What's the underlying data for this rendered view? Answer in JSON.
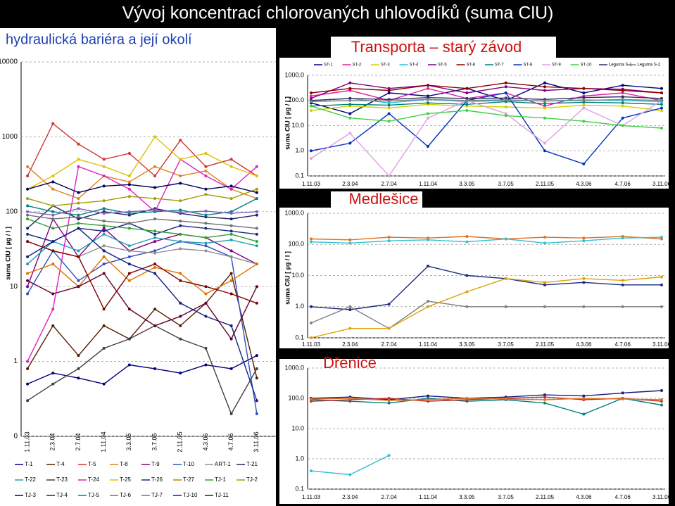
{
  "slide": {
    "title": "Vývoj koncentrací chlorovaných uhlovodíků (suma ClU)",
    "subtitle": "hydraulická bariéra a její okolí"
  },
  "chart_data": [
    {
      "type": "line",
      "log_scale": true,
      "grid": true,
      "y_label": "suma ClU [ µg / l ]",
      "categories": [
        "1.11.03",
        "2.3.04",
        "2.7.04",
        "1.11.04",
        "3.3.05",
        "3.7.05",
        "2.11.05",
        "4.3.06",
        "4.7.06",
        "3.11.06"
      ],
      "ylim": [
        0.1,
        10000
      ],
      "yticks": [
        10000,
        1000,
        100,
        10,
        1,
        {
          "value": 0.1,
          "label": "0"
        }
      ],
      "series": [
        {
          "name": "T-1",
          "color": "#000080",
          "values": [
            0.5,
            0.7,
            0.6,
            0.5,
            0.9,
            0.8,
            0.7,
            0.9,
            0.8,
            1.2
          ]
        },
        {
          "name": "T-4",
          "color": "#5a1a00",
          "values": [
            0.8,
            3,
            1.2,
            3,
            2,
            5,
            3,
            6,
            15,
            0.6
          ]
        },
        {
          "name": "T-5",
          "color": "#cc3333",
          "values": [
            300,
            1500,
            800,
            500,
            600,
            300,
            900,
            400,
            500,
            300
          ]
        },
        {
          "name": "T-8",
          "color": "#e08020",
          "values": [
            400,
            200,
            150,
            300,
            250,
            400,
            300,
            350,
            200,
            150
          ]
        },
        {
          "name": "T-9",
          "color": "#800080",
          "values": [
            10,
            80,
            25,
            60,
            30,
            40,
            50,
            45,
            30,
            20
          ]
        },
        {
          "name": "T-10",
          "color": "#3050c0",
          "values": [
            8,
            30,
            12,
            20,
            25,
            30,
            40,
            35,
            25,
            0.2
          ]
        },
        {
          "name": "ART-1",
          "color": "#909090",
          "values": [
            40,
            30,
            25,
            35,
            30,
            28,
            32,
            30,
            25,
            20
          ]
        },
        {
          "name": "T-21",
          "color": "#202060",
          "values": [
            60,
            120,
            80,
            100,
            90,
            110,
            95,
            85,
            80,
            90
          ]
        },
        {
          "name": "T-22",
          "color": "#20a0b0",
          "values": [
            20,
            40,
            30,
            50,
            35,
            45,
            40,
            38,
            42,
            35
          ]
        },
        {
          "name": "T-23",
          "color": "#404040",
          "values": [
            0.3,
            0.5,
            0.8,
            1.5,
            2,
            3,
            2,
            1.5,
            0.2,
            0.8
          ]
        },
        {
          "name": "T-24",
          "color": "#e020c0",
          "values": [
            1,
            5,
            400,
            300,
            200,
            100,
            500,
            300,
            200,
            400
          ]
        },
        {
          "name": "T-25",
          "color": "#e0c000",
          "values": [
            200,
            300,
            500,
            400,
            300,
            1000,
            500,
            600,
            400,
            300
          ]
        },
        {
          "name": "T-26",
          "color": "#1a2a80",
          "values": [
            50,
            40,
            60,
            55,
            70,
            50,
            65,
            60,
            55,
            50
          ]
        },
        {
          "name": "T-27",
          "color": "#e07000",
          "values": [
            15,
            20,
            10,
            25,
            12,
            18,
            15,
            8,
            12,
            20
          ]
        },
        {
          "name": "TJ-1",
          "color": "#30a030",
          "values": [
            80,
            60,
            70,
            65,
            60,
            55,
            50,
            45,
            50,
            40
          ]
        },
        {
          "name": "TJ-2",
          "color": "#a0a000",
          "values": [
            150,
            120,
            130,
            140,
            160,
            150,
            140,
            170,
            150,
            200
          ]
        },
        {
          "name": "TJ-3",
          "color": "#000060",
          "values": [
            200,
            250,
            180,
            220,
            230,
            210,
            240,
            200,
            220,
            180
          ]
        },
        {
          "name": "TJ-4",
          "color": "#800000",
          "values": [
            40,
            30,
            25,
            5,
            15,
            20,
            12,
            10,
            8,
            6
          ]
        },
        {
          "name": "TJ-5",
          "color": "#008080",
          "values": [
            120,
            100,
            90,
            110,
            95,
            100,
            105,
            90,
            100,
            150
          ]
        },
        {
          "name": "TJ-6",
          "color": "#707070",
          "values": [
            90,
            80,
            85,
            75,
            70,
            80,
            75,
            70,
            65,
            60
          ]
        },
        {
          "name": "TJ-7",
          "color": "#8060c0",
          "values": [
            100,
            90,
            110,
            95,
            100,
            105,
            98,
            102,
            95,
            100
          ]
        },
        {
          "name": "TJ-10",
          "color": "#102080",
          "values": [
            25,
            40,
            60,
            30,
            20,
            15,
            6,
            4,
            3,
            0.3
          ]
        },
        {
          "name": "TJ-11",
          "color": "#600030",
          "values": [
            12,
            8,
            10,
            15,
            5,
            3,
            4,
            6,
            2,
            10
          ]
        }
      ]
    },
    {
      "type": "line",
      "log_scale": true,
      "grid": true,
      "title": "Transporta – starý závod",
      "y_label": "suma ClU [ µg / l ]",
      "categories": [
        "1.11.03",
        "2.3.04",
        "2.7.04",
        "1.11.04",
        "3.3.05",
        "3.7.05",
        "2.11.05",
        "4.3.06",
        "4.7.06",
        "3.11.06"
      ],
      "ylim": [
        0.1,
        1000
      ],
      "yticks": [
        {
          "value": 1000,
          "label": "1000.0"
        },
        {
          "value": 100,
          "label": "100.0"
        },
        {
          "value": 10,
          "label": "10.0"
        },
        {
          "value": 1,
          "label": "1.0"
        },
        0.1
      ],
      "series": [
        {
          "name": "ST-1",
          "color": "#000080",
          "values": [
            80,
            30,
            200,
            150,
            300,
            100,
            500,
            200,
            400,
            300
          ]
        },
        {
          "name": "ST-2",
          "color": "#e020a0",
          "values": [
            150,
            250,
            100,
            300,
            120,
            200,
            60,
            150,
            200,
            100
          ]
        },
        {
          "name": "ST-3",
          "color": "#d0d000",
          "values": [
            40,
            60,
            50,
            70,
            60,
            55,
            50,
            65,
            60,
            40
          ]
        },
        {
          "name": "ST-4",
          "color": "#20c0e0",
          "values": [
            100,
            120,
            80,
            110,
            90,
            100,
            95,
            105,
            100,
            90
          ]
        },
        {
          "name": "ST-5",
          "color": "#800080",
          "values": [
            120,
            500,
            300,
            400,
            200,
            350,
            250,
            300,
            280,
            200
          ]
        },
        {
          "name": "ST-6",
          "color": "#8b0000",
          "values": [
            200,
            300,
            250,
            400,
            300,
            500,
            350,
            300,
            250,
            200
          ]
        },
        {
          "name": "ST-7",
          "color": "#008080",
          "values": [
            60,
            70,
            65,
            80,
            70,
            90,
            75,
            85,
            80,
            70
          ]
        },
        {
          "name": "ST-8",
          "color": "#0030c0",
          "values": [
            1,
            2,
            30,
            1.5,
            100,
            200,
            1,
            0.3,
            20,
            50
          ]
        },
        {
          "name": "ST-9",
          "color": "#e0a0e0",
          "values": [
            0.5,
            5,
            0.1,
            20,
            100,
            30,
            2,
            50,
            10,
            100
          ]
        },
        {
          "name": "ST-10",
          "color": "#40d040",
          "values": [
            60,
            20,
            15,
            30,
            40,
            25,
            20,
            15,
            10,
            8
          ]
        },
        {
          "name": "Leguma S-1",
          "color": "#303060",
          "values": [
            100,
            120,
            110,
            130,
            120,
            125,
            110,
            130,
            140,
            120
          ]
        },
        {
          "name": "Leguma S-2",
          "color": "#808080",
          "values": [
            90,
            100,
            95,
            110,
            100,
            105,
            95,
            100,
            110,
            100
          ]
        }
      ]
    },
    {
      "type": "line",
      "log_scale": true,
      "grid": true,
      "title": "Medlešice",
      "y_label": "suma ClU [ µg / l ]",
      "categories": [
        "1.11.03",
        "2.3.04",
        "2.7.04",
        "1.11.04",
        "3.3.05",
        "3.7.05",
        "2.11.05",
        "4.3.06",
        "4.7.06",
        "3.11.06"
      ],
      "ylim": [
        0.1,
        1000
      ],
      "yticks": [
        {
          "value": 1000,
          "label": "1000.0"
        },
        {
          "value": 100,
          "label": "100.0"
        },
        {
          "value": 10,
          "label": "10.0"
        },
        {
          "value": 1,
          "label": "1.0"
        },
        0.1
      ],
      "series": [
        {
          "color": "#e07020",
          "values": [
            150,
            140,
            170,
            160,
            180,
            150,
            170,
            160,
            180,
            150
          ]
        },
        {
          "color": "#30c0d0",
          "values": [
            120,
            110,
            130,
            140,
            120,
            150,
            110,
            130,
            160,
            170
          ]
        },
        {
          "color": "#1a2a80",
          "values": [
            1,
            0.8,
            1.2,
            20,
            10,
            8,
            5,
            6,
            5,
            5
          ]
        },
        {
          "color": "#808080",
          "values": [
            0.3,
            1,
            0.2,
            1.5,
            1,
            1,
            1,
            1,
            1,
            1
          ]
        },
        {
          "color": "#e0a000",
          "values": [
            0.1,
            0.2,
            0.2,
            1,
            3,
            8,
            6,
            8,
            7,
            9
          ]
        }
      ]
    },
    {
      "type": "line",
      "log_scale": true,
      "grid": true,
      "title": "Dřenice",
      "categories": [
        "1.11.03",
        "2.3.04",
        "2.7.04",
        "1.11.04",
        "3.3.05",
        "3.7.05",
        "2.11.05",
        "4.3.06",
        "4.7.06",
        "3.11.06"
      ],
      "ylim": [
        0.1,
        1000
      ],
      "yticks": [
        {
          "value": 1000,
          "label": "1000.0"
        },
        {
          "value": 100,
          "label": "100.0"
        },
        {
          "value": 10,
          "label": "10.0"
        },
        {
          "value": 1,
          "label": "1.0"
        },
        0.1
      ],
      "series": [
        {
          "color": "#1a1a80",
          "values": [
            100,
            110,
            90,
            120,
            100,
            110,
            130,
            120,
            150,
            180
          ]
        },
        {
          "color": "#008080",
          "values": [
            90,
            80,
            70,
            100,
            80,
            90,
            70,
            30,
            100,
            60
          ]
        },
        {
          "color": "#c03030",
          "values": [
            80,
            90,
            100,
            80,
            90,
            100,
            110,
            90,
            100,
            80
          ]
        },
        {
          "color": "#e07020",
          "values": [
            95,
            100,
            85,
            90,
            100,
            95,
            90,
            100,
            95,
            90
          ]
        },
        {
          "color": "#30c0d0",
          "values": [
            0.4,
            0.3,
            1.3,
            null,
            null,
            null,
            null,
            null,
            null,
            null
          ]
        }
      ]
    }
  ]
}
